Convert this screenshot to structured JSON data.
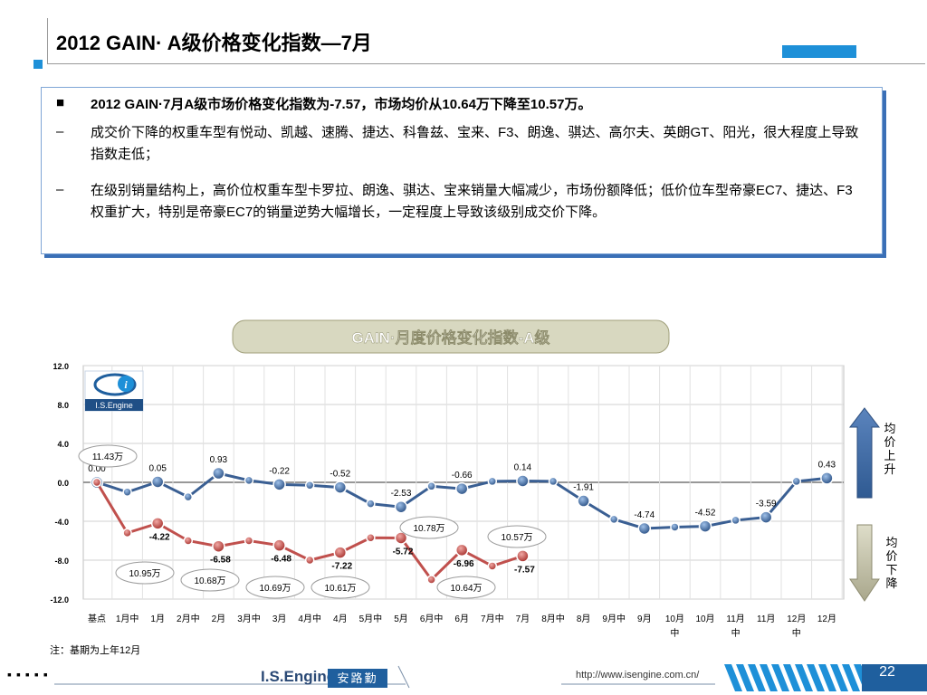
{
  "page_title": "2012 GAIN· A级价格变化指数—7月",
  "summary": {
    "headline": "2012 GAIN·7月A级市场价格变化指数为-7.57，市场均价从10.64万下降至10.57万。",
    "dash1": "成交价下降的权重车型有悦动、凯越、速腾、捷达、科鲁兹、宝来、F3、朗逸、骐达、高尔夫、英朗GT、阳光，很大程度上导致指数走低；",
    "dash2": "在级别销量结构上，高价位权重车型卡罗拉、朗逸、骐达、宝来销量大幅减少，市场份额降低；低价位车型帝豪EC7、捷达、F3权重扩大，特别是帝豪EC7的销量逆势大幅增长，一定程度上导致该级别成交价下降。"
  },
  "chart_title": "GAIN·月度价格变化指数-A级",
  "chart_data": {
    "type": "line",
    "title": "GAIN·月度价格变化指数-A级",
    "x_labels": [
      "基点",
      "1月中",
      "1月",
      "2月中",
      "2月",
      "3月中",
      "3月",
      "4月中",
      "4月",
      "5月中",
      "5月",
      "6月中",
      "6月",
      "7月中",
      "7月",
      "8月中",
      "8月",
      "9月中",
      "9月",
      "10月中",
      "10月",
      "11月中",
      "11月",
      "12月中",
      "12月"
    ],
    "ylim": [
      -12,
      12
    ],
    "y_ticks": [
      "12.0",
      "8.0",
      "4.0",
      "0.0",
      "-4.0",
      "-8.0",
      "-12.0"
    ],
    "series": [
      {
        "values": [
          0.0,
          -1.0,
          0.05,
          -1.5,
          0.93,
          0.2,
          -0.22,
          -0.3,
          -0.52,
          -2.2,
          -2.53,
          -0.4,
          -0.66,
          0.1,
          0.14,
          0.1,
          -1.91,
          -3.8,
          -4.74,
          -4.6,
          -4.52,
          -3.9,
          -3.59,
          0.1,
          0.43
        ],
        "labels": [
          "0.00",
          "",
          "0.05",
          "",
          "0.93",
          "",
          "-0.22",
          "",
          "-0.52",
          "",
          "-2.53",
          "",
          "-0.66",
          "",
          "0.14",
          "",
          "-1.91",
          "",
          "-4.74",
          "",
          "-4.52",
          "",
          "-3.59",
          "",
          "0.43"
        ]
      },
      {
        "values": [
          0.0,
          -5.2,
          -4.22,
          -6.0,
          -6.58,
          -6.0,
          -6.48,
          -8.0,
          -7.22,
          -5.7,
          -5.72,
          -10.0,
          -6.96,
          -8.6,
          -7.57
        ],
        "labels": [
          "",
          "",
          "-4.22",
          "",
          "-6.58",
          "",
          "-6.48",
          "",
          "-7.22",
          "",
          "-5.72",
          "",
          "-6.96",
          "",
          "-7.57"
        ]
      }
    ],
    "price_callouts": [
      "11.43万",
      "10.95万",
      "10.68万",
      "10.69万",
      "10.61万",
      "10.78万",
      "10.64万",
      "10.57万"
    ],
    "side_labels": {
      "up": "均价上升",
      "down": "均价下降"
    }
  },
  "logo_text": "I.S.Engine",
  "note": "注：基期为上年12月",
  "footer": {
    "dots": "▪▪▪▪▪",
    "brand": "I.S.Engine",
    "brand_cn": "安路勤",
    "url": "http://www.isengine.com.cn/",
    "page_number": "22"
  },
  "colors": {
    "accent": "#1e90d8",
    "series1": "#3a5f93",
    "series2": "#c0504d",
    "up_arrow": "#3a5f93",
    "down_arrow": "#bbb9a0"
  }
}
